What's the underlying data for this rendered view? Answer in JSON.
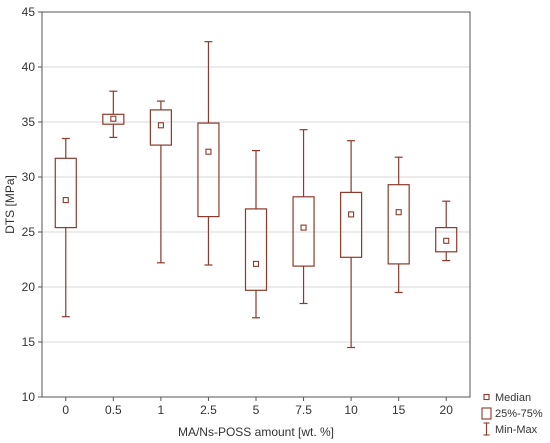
{
  "chart_data": {
    "type": "box",
    "xlabel": "MA/Ns-POSS amount [wt. %]",
    "ylabel": "DTS [MPa]",
    "ylim": [
      10,
      45
    ],
    "yticks": [
      10,
      15,
      20,
      25,
      30,
      35,
      40,
      45
    ],
    "grid": true,
    "legend_position": "bottom-right",
    "legend": [
      "Median",
      "25%-75%",
      "Min-Max"
    ],
    "color": "#8b3a2b",
    "categories": [
      "0",
      "0.5",
      "1",
      "2.5",
      "5",
      "7.5",
      "10",
      "15",
      "20"
    ],
    "boxes": [
      {
        "min": 17.3,
        "q1": 25.4,
        "median": 27.9,
        "q3": 31.7,
        "max": 33.5
      },
      {
        "min": 33.6,
        "q1": 34.8,
        "median": 35.3,
        "q3": 35.7,
        "max": 37.8
      },
      {
        "min": 22.2,
        "q1": 32.9,
        "median": 34.7,
        "q3": 36.1,
        "max": 36.9
      },
      {
        "min": 22.0,
        "q1": 26.4,
        "median": 32.3,
        "q3": 34.9,
        "max": 42.3
      },
      {
        "min": 17.2,
        "q1": 19.7,
        "median": 22.1,
        "q3": 27.1,
        "max": 32.4
      },
      {
        "min": 18.5,
        "q1": 21.9,
        "median": 25.4,
        "q3": 28.2,
        "max": 34.3
      },
      {
        "min": 14.5,
        "q1": 22.7,
        "median": 26.6,
        "q3": 28.6,
        "max": 33.3
      },
      {
        "min": 19.5,
        "q1": 22.1,
        "median": 26.8,
        "q3": 29.3,
        "max": 31.8
      },
      {
        "min": 22.4,
        "q1": 23.2,
        "median": 24.2,
        "q3": 25.4,
        "max": 27.8
      }
    ]
  }
}
